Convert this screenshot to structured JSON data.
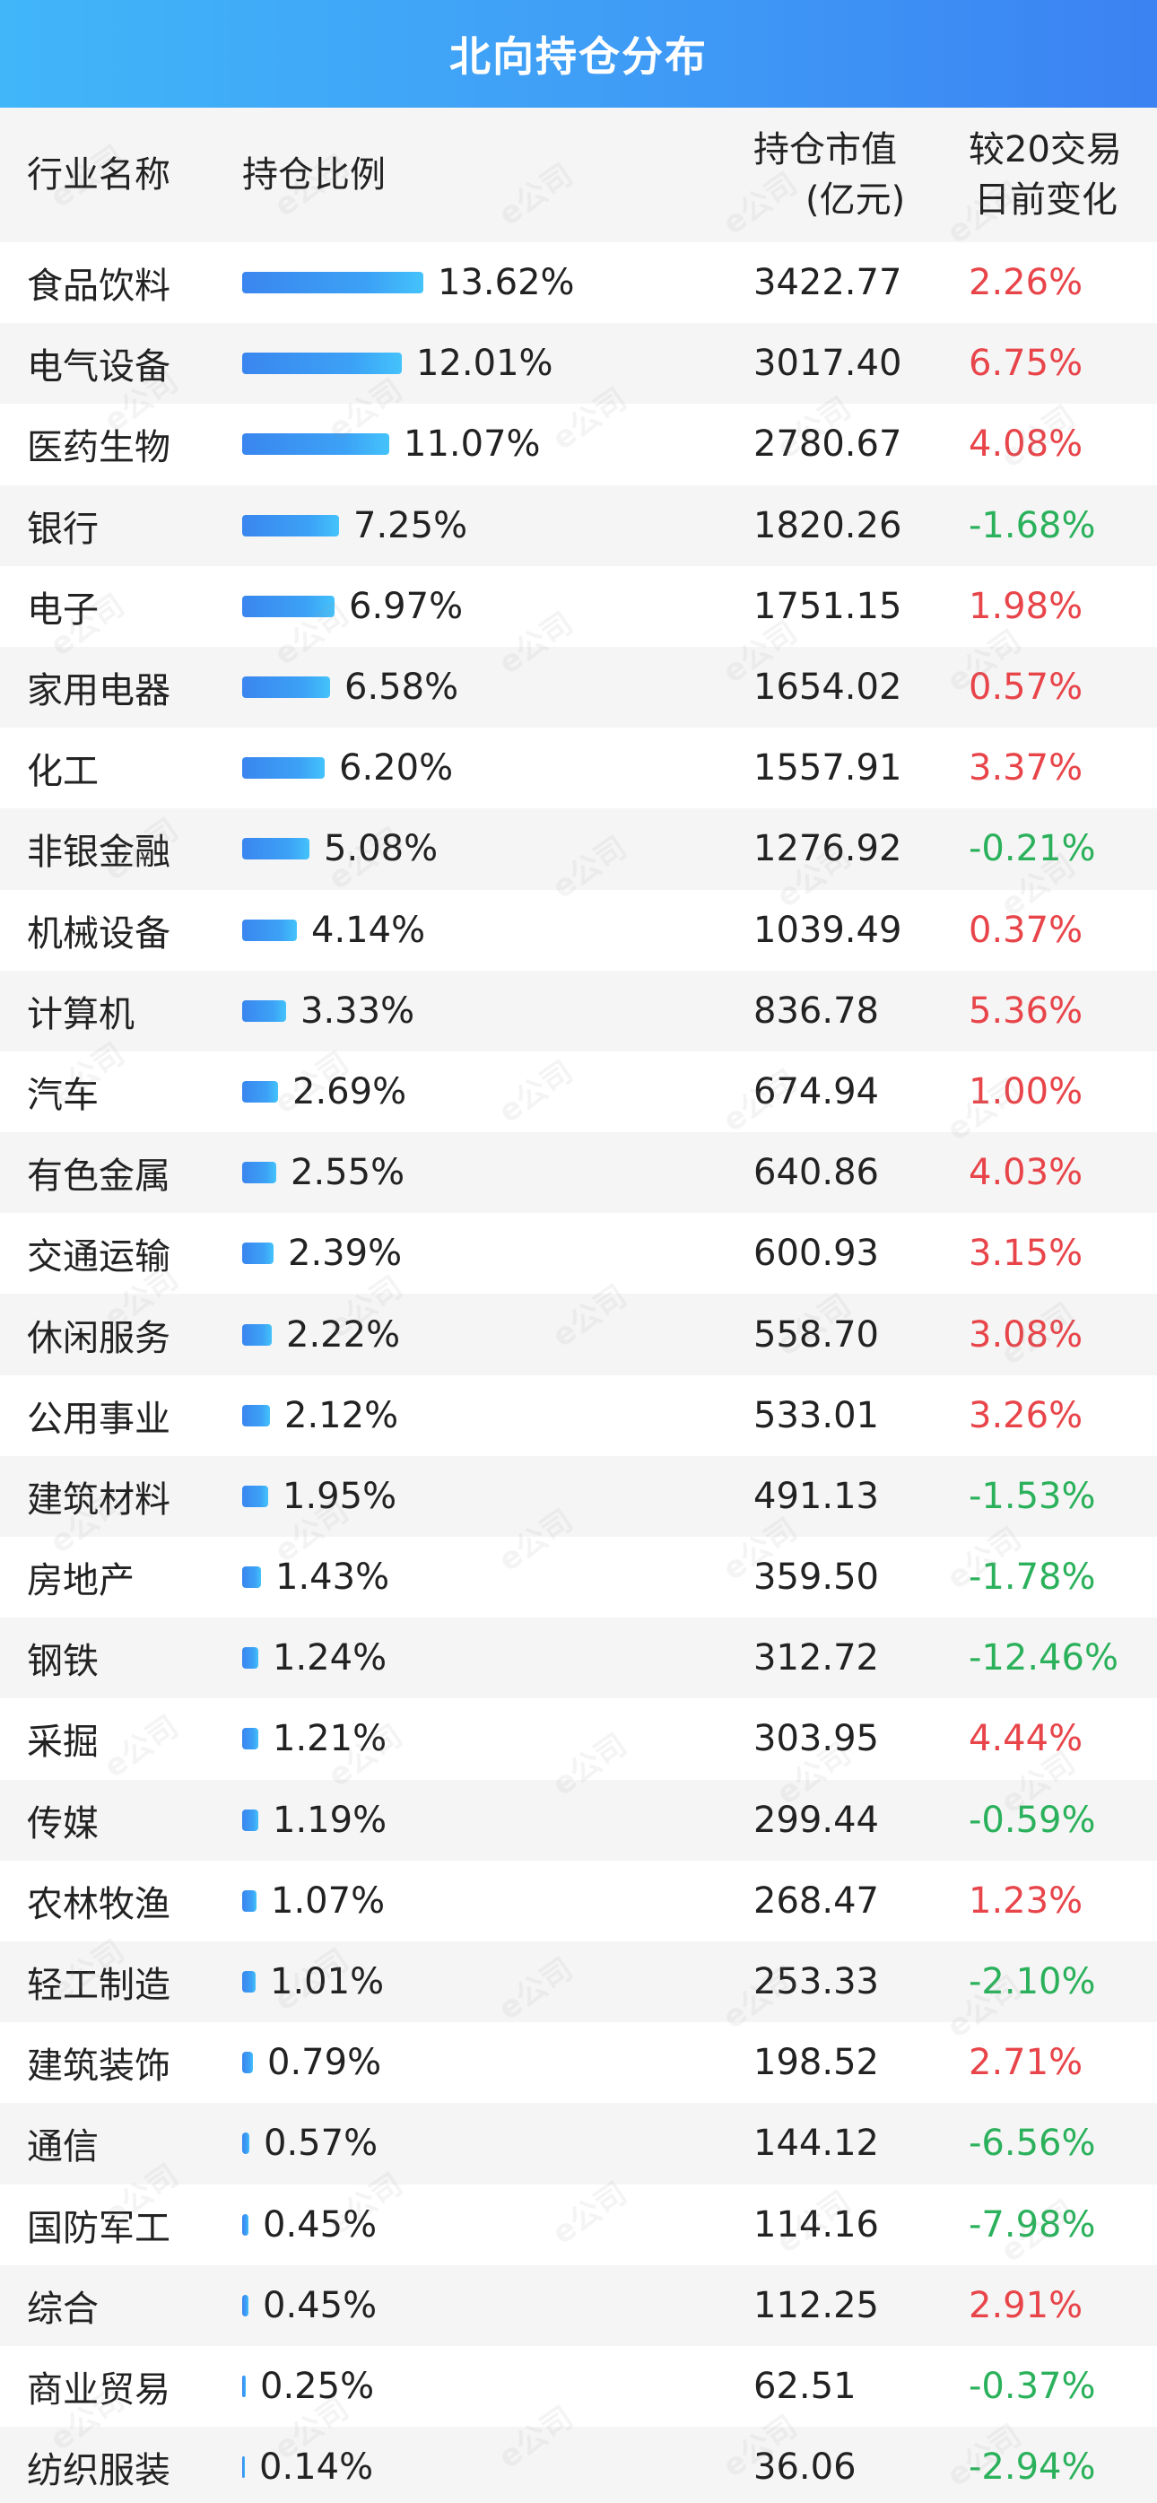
{
  "title": "北向持仓分布",
  "header": {
    "name": "行业名称",
    "ratio": "持仓比例",
    "value_line1": "持仓市值",
    "value_line2": "(亿元)",
    "change_line1": "较20交易",
    "change_line2": "日前变化"
  },
  "watermark_text": "e公司",
  "colors": {
    "title_bg_start": "#41b6f9",
    "title_bg_end": "#3b82f2",
    "bar_start": "#3a86ef",
    "bar_end": "#44c3fb",
    "positive": "#e8454a",
    "negative": "#2bb15b",
    "row_alt_bg": "#f5f5f5"
  },
  "chart_data": {
    "type": "bar",
    "orientation": "horizontal",
    "categories": [
      "食品饮料",
      "电气设备",
      "医药生物",
      "银行",
      "电子",
      "家用电器",
      "化工",
      "非银金融",
      "机械设备",
      "计算机",
      "汽车",
      "有色金属",
      "交通运输",
      "休闲服务",
      "公用事业",
      "建筑材料",
      "房地产",
      "钢铁",
      "采掘",
      "传媒",
      "农林牧渔",
      "轻工制造",
      "建筑装饰",
      "通信",
      "国防军工",
      "综合",
      "商业贸易",
      "纺织服装"
    ],
    "values": [
      13.62,
      12.01,
      11.07,
      7.25,
      6.97,
      6.58,
      6.2,
      5.08,
      4.14,
      3.33,
      2.69,
      2.55,
      2.39,
      2.22,
      2.12,
      1.95,
      1.43,
      1.24,
      1.21,
      1.19,
      1.07,
      1.01,
      0.79,
      0.57,
      0.45,
      0.45,
      0.25,
      0.14
    ],
    "xlim": [
      0,
      13.62
    ],
    "grid": false
  },
  "rows": [
    {
      "name": "食品饮料",
      "pct": "13.62%",
      "value": "3422.77",
      "change": "2.26%",
      "dir": "up"
    },
    {
      "name": "电气设备",
      "pct": "12.01%",
      "value": "3017.40",
      "change": "6.75%",
      "dir": "up"
    },
    {
      "name": "医药生物",
      "pct": "11.07%",
      "value": "2780.67",
      "change": "4.08%",
      "dir": "up"
    },
    {
      "name": "银行",
      "pct": "7.25%",
      "value": "1820.26",
      "change": "-1.68%",
      "dir": "down"
    },
    {
      "name": "电子",
      "pct": "6.97%",
      "value": "1751.15",
      "change": "1.98%",
      "dir": "up"
    },
    {
      "name": "家用电器",
      "pct": "6.58%",
      "value": "1654.02",
      "change": "0.57%",
      "dir": "up"
    },
    {
      "name": "化工",
      "pct": "6.20%",
      "value": "1557.91",
      "change": "3.37%",
      "dir": "up"
    },
    {
      "name": "非银金融",
      "pct": "5.08%",
      "value": "1276.92",
      "change": "-0.21%",
      "dir": "down"
    },
    {
      "name": "机械设备",
      "pct": "4.14%",
      "value": "1039.49",
      "change": "0.37%",
      "dir": "up"
    },
    {
      "name": "计算机",
      "pct": "3.33%",
      "value": "836.78",
      "change": "5.36%",
      "dir": "up"
    },
    {
      "name": "汽车",
      "pct": "2.69%",
      "value": "674.94",
      "change": "1.00%",
      "dir": "up"
    },
    {
      "name": "有色金属",
      "pct": "2.55%",
      "value": "640.86",
      "change": "4.03%",
      "dir": "up"
    },
    {
      "name": "交通运输",
      "pct": "2.39%",
      "value": "600.93",
      "change": "3.15%",
      "dir": "up"
    },
    {
      "name": "休闲服务",
      "pct": "2.22%",
      "value": "558.70",
      "change": "3.08%",
      "dir": "up"
    },
    {
      "name": "公用事业",
      "pct": "2.12%",
      "value": "533.01",
      "change": "3.26%",
      "dir": "up"
    },
    {
      "name": "建筑材料",
      "pct": "1.95%",
      "value": "491.13",
      "change": "-1.53%",
      "dir": "down"
    },
    {
      "name": "房地产",
      "pct": "1.43%",
      "value": "359.50",
      "change": "-1.78%",
      "dir": "down"
    },
    {
      "name": "钢铁",
      "pct": "1.24%",
      "value": "312.72",
      "change": "-12.46%",
      "dir": "down"
    },
    {
      "name": "采掘",
      "pct": "1.21%",
      "value": "303.95",
      "change": "4.44%",
      "dir": "up"
    },
    {
      "name": "传媒",
      "pct": "1.19%",
      "value": "299.44",
      "change": "-0.59%",
      "dir": "down"
    },
    {
      "name": "农林牧渔",
      "pct": "1.07%",
      "value": "268.47",
      "change": "1.23%",
      "dir": "up"
    },
    {
      "name": "轻工制造",
      "pct": "1.01%",
      "value": "253.33",
      "change": "-2.10%",
      "dir": "down"
    },
    {
      "name": "建筑装饰",
      "pct": "0.79%",
      "value": "198.52",
      "change": "2.71%",
      "dir": "up"
    },
    {
      "name": "通信",
      "pct": "0.57%",
      "value": "144.12",
      "change": "-6.56%",
      "dir": "down"
    },
    {
      "name": "国防军工",
      "pct": "0.45%",
      "value": "114.16",
      "change": "-7.98%",
      "dir": "down"
    },
    {
      "name": "综合",
      "pct": "0.45%",
      "value": "112.25",
      "change": "2.91%",
      "dir": "up"
    },
    {
      "name": "商业贸易",
      "pct": "0.25%",
      "value": "62.51",
      "change": "-0.37%",
      "dir": "down"
    },
    {
      "name": "纺织服装",
      "pct": "0.14%",
      "value": "36.06",
      "change": "-2.94%",
      "dir": "down"
    }
  ]
}
